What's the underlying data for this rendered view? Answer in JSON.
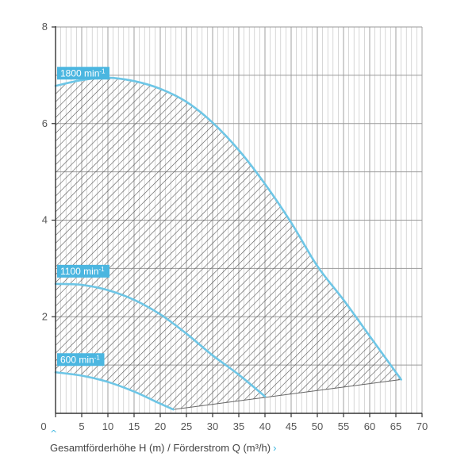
{
  "colors": {
    "curve": "#6ec6e6",
    "label_bg": "#4bb6e0",
    "grid_major": "#9a9a9a",
    "grid_minor": "#bdbdbd",
    "hatch": "#555555",
    "axis": "#333333",
    "tick_text": "#555555"
  },
  "caption": {
    "text": "Gesamtförderhöhe H (m) / Förderstrom Q (m³/h)",
    "up_icon": "chevron-up-icon",
    "right_icon": "chevron-right-icon"
  },
  "chart_data": {
    "type": "line",
    "x_ticks": [
      0,
      5,
      10,
      15,
      20,
      25,
      30,
      35,
      40,
      45,
      50,
      55,
      60,
      65,
      70
    ],
    "y_ticks": [
      2,
      4,
      6,
      8
    ],
    "origin_label": "0",
    "xlim": [
      0,
      70
    ],
    "ylim": [
      0,
      8
    ],
    "x_minor_step": 1,
    "grid": true,
    "series": [
      {
        "name": "1800 min⁻¹",
        "label_base": "1800 min",
        "label_sup": "-1",
        "x": [
          0,
          5,
          10,
          15,
          20,
          25,
          30,
          35,
          40,
          45,
          50,
          55,
          60,
          63,
          66
        ],
        "y": [
          6.78,
          6.9,
          6.95,
          6.88,
          6.72,
          6.45,
          6.02,
          5.45,
          4.75,
          3.95,
          3.05,
          2.35,
          1.6,
          1.15,
          0.7
        ]
      },
      {
        "name": "1100 min⁻¹",
        "label_base": "1100 min",
        "label_sup": "-1",
        "x": [
          0,
          5,
          10,
          15,
          20,
          25,
          30,
          35,
          40
        ],
        "y": [
          2.68,
          2.66,
          2.55,
          2.35,
          2.05,
          1.65,
          1.2,
          0.8,
          0.35
        ]
      },
      {
        "name": "600 min⁻¹",
        "label_base": "600 min",
        "label_sup": "-1",
        "x": [
          0,
          5,
          10,
          15,
          20,
          22.5
        ],
        "y": [
          0.85,
          0.78,
          0.65,
          0.45,
          0.2,
          0.08
        ]
      }
    ],
    "operating_area": {
      "pattern": "diagonal hatch",
      "bottom_edge_x": [
        22.5,
        66
      ],
      "bottom_edge_y": [
        0.08,
        0.7
      ]
    }
  }
}
